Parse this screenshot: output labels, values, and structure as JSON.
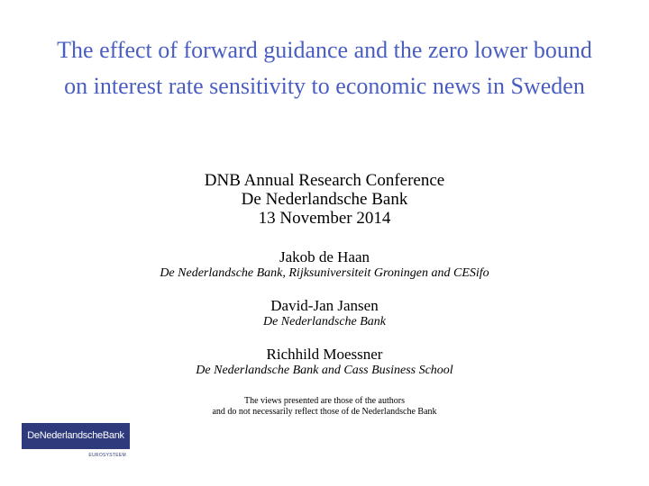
{
  "title": {
    "line1": "The effect of forward guidance and the zero lower bound",
    "line2": "on interest rate sensitivity to economic news in Sweden"
  },
  "conference": {
    "name": "DNB Annual Research Conference",
    "host": "De Nederlandsche Bank",
    "date": "13 November 2014"
  },
  "authors": [
    {
      "name": "Jakob de Haan",
      "affiliation": "De Nederlandsche Bank, Rijksuniversiteit Groningen and CESifo"
    },
    {
      "name": "David-Jan Jansen",
      "affiliation": "De Nederlandsche Bank"
    },
    {
      "name": "Richhild Moessner",
      "affiliation": "De Nederlandsche Bank and Cass Business School"
    }
  ],
  "disclaimer": {
    "line1": "The views presented are those of the authors",
    "line2": "and do not necessarily reflect those of de Nederlandsche Bank"
  },
  "logo": {
    "text": "DeNederlandscheBank",
    "subtext": "EUROSYSTEEM",
    "color": "#2e3a7c"
  },
  "colors": {
    "title": "#4a5ec2"
  }
}
